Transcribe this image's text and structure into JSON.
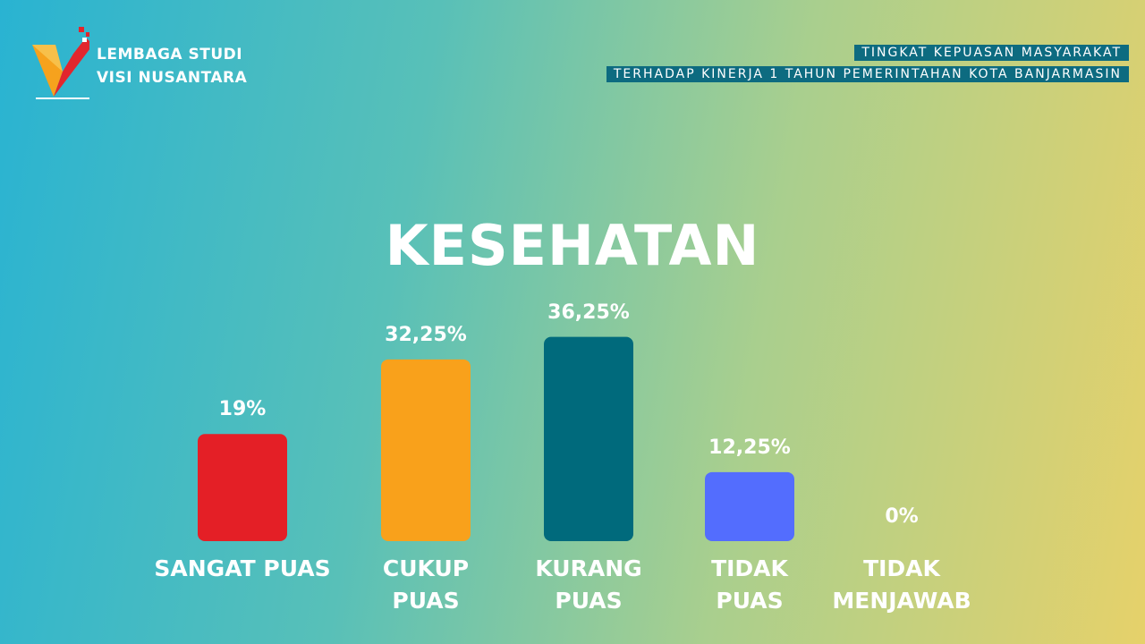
{
  "brand": {
    "line1": "LEMBAGA STUDI",
    "line2": "VISI NUSANTARA"
  },
  "subtitle": {
    "line1": "TINGKAT KEPUASAN MASYARAKAT",
    "line2": "TERHADAP KINERJA 1 TAHUN PEMERINTAHAN KOTA BANJARMASIN"
  },
  "chart_data": {
    "type": "bar",
    "title": "KESEHATAN",
    "categories": [
      "SANGAT PUAS",
      "CUKUP\nPUAS",
      "KURANG\nPUAS",
      "TIDAK\nPUAS",
      "TIDAK\nMENJAWAB"
    ],
    "values": [
      19,
      32.25,
      36.25,
      12.25,
      0
    ],
    "value_labels": [
      "19%",
      "32,25%",
      "36,25%",
      "12,25%",
      "0%"
    ],
    "colors": [
      "#e41f26",
      "#f9a11b",
      "#006a7c",
      "#536dfe",
      "#f4874b"
    ]
  }
}
